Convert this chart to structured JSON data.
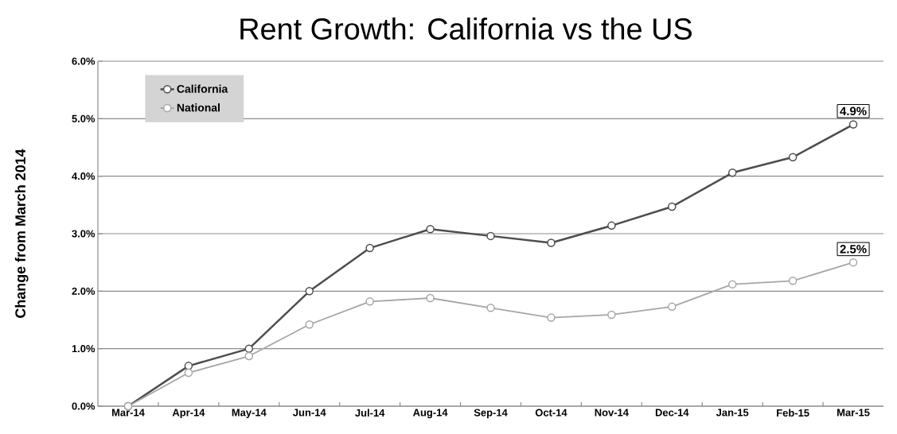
{
  "chart_data": {
    "type": "line",
    "title": "Rent Growth: California vs the US",
    "ylabel": "Change from March 2014",
    "categories": [
      "Mar-14",
      "Apr-14",
      "May-14",
      "Jun-14",
      "Jul-14",
      "Aug-14",
      "Sep-14",
      "Oct-14",
      "Nov-14",
      "Dec-14",
      "Jan-15",
      "Feb-15",
      "Mar-15"
    ],
    "series": [
      {
        "name": "California",
        "color": "#4d4d4d",
        "values": [
          0,
          0.7,
          1.0,
          2.0,
          2.75,
          3.08,
          2.96,
          2.84,
          3.14,
          3.47,
          4.06,
          4.33,
          4.9
        ],
        "value_labels": [
          null,
          null,
          null,
          null,
          null,
          null,
          null,
          null,
          null,
          null,
          null,
          null,
          "4.9%"
        ]
      },
      {
        "name": "National",
        "color": "#a6a6a6",
        "values": [
          0,
          0.58,
          0.87,
          1.42,
          1.82,
          1.88,
          1.71,
          1.54,
          1.59,
          1.73,
          2.12,
          2.18,
          2.5
        ],
        "value_labels": [
          null,
          null,
          null,
          null,
          null,
          null,
          null,
          null,
          null,
          null,
          null,
          null,
          "2.5%"
        ]
      }
    ],
    "ylim": [
      0,
      6
    ],
    "yticks": [
      {
        "value": 0,
        "label": "0.0%"
      },
      {
        "value": 1,
        "label": "1.0%"
      },
      {
        "value": 2,
        "label": "2.0%"
      },
      {
        "value": 3,
        "label": "3.0%"
      },
      {
        "value": 4,
        "label": "4.0%"
      },
      {
        "value": 5,
        "label": "5.0%"
      },
      {
        "value": 6,
        "label": "6.0%"
      }
    ],
    "grid": "y",
    "legend": "top left",
    "marker": "circle",
    "line_style": "solid"
  }
}
